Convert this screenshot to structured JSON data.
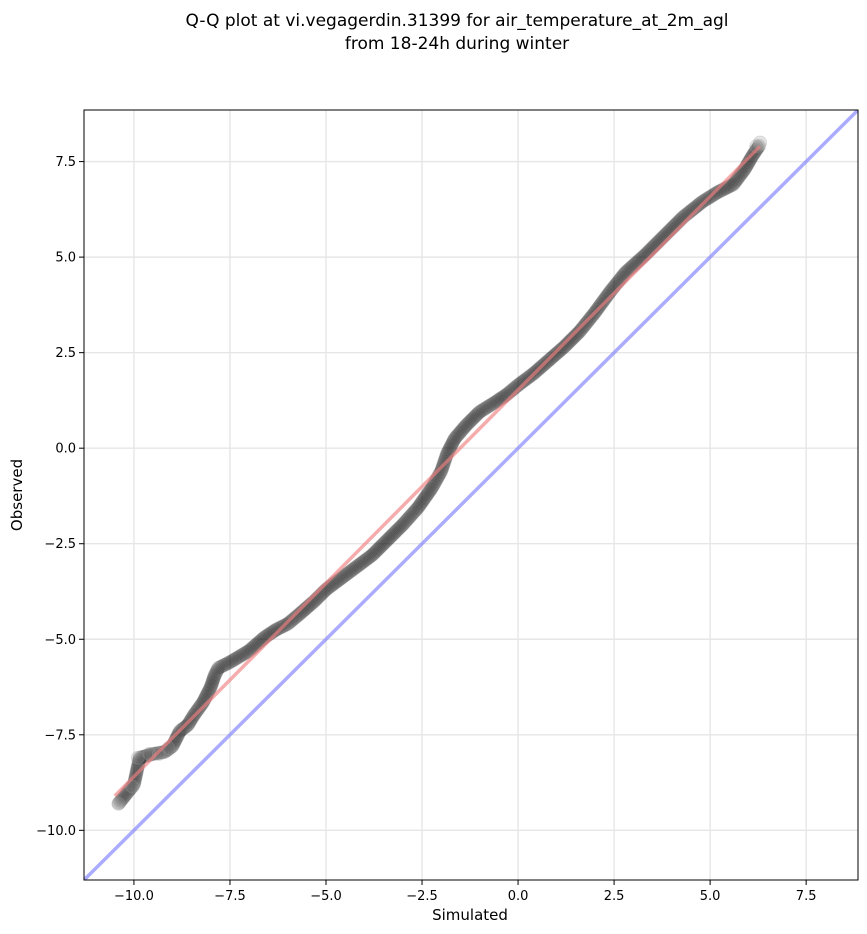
{
  "chart_data": {
    "type": "scatter",
    "title": "Q-Q plot at vi.vegagerdin.31399 for air_temperature_at_2m_agl",
    "subtitle": "from 18-24h during winter",
    "xlabel": "Simulated",
    "ylabel": "Observed",
    "xlim": [
      -11.3,
      8.85
    ],
    "ylim": [
      -11.3,
      8.85
    ],
    "xticks": [
      -10.0,
      -7.5,
      -5.0,
      -2.5,
      0.0,
      2.5,
      5.0,
      7.5
    ],
    "xtick_labels": [
      "−10.0",
      "−7.5",
      "−5.0",
      "−2.5",
      "0.0",
      "2.5",
      "5.0",
      "7.5"
    ],
    "yticks": [
      -10.0,
      -7.5,
      -5.0,
      -2.5,
      0.0,
      2.5,
      5.0,
      7.5
    ],
    "ytick_labels": [
      "−10.0",
      "−7.5",
      "−5.0",
      "−2.5",
      "0.0",
      "2.5",
      "5.0",
      "7.5"
    ],
    "grid": true,
    "colors": {
      "points": "#000000",
      "fit_line": "#f08080",
      "identity_line": "#8080ff"
    },
    "identity_line": {
      "from": [
        -11.3,
        -11.3
      ],
      "to": [
        8.85,
        8.85
      ]
    },
    "fit_line": {
      "from": [
        -10.5,
        -9.1
      ],
      "to": [
        6.3,
        7.9
      ]
    },
    "quantile_curve": [
      [
        -10.4,
        -9.3
      ],
      [
        -10.0,
        -8.8
      ],
      [
        -9.85,
        -8.1
      ],
      [
        -9.5,
        -8.0
      ],
      [
        -9.2,
        -7.95
      ],
      [
        -9.0,
        -7.8
      ],
      [
        -8.8,
        -7.4
      ],
      [
        -8.6,
        -7.25
      ],
      [
        -8.45,
        -7.0
      ],
      [
        -8.2,
        -6.65
      ],
      [
        -8.0,
        -6.25
      ],
      [
        -7.9,
        -5.95
      ],
      [
        -7.8,
        -5.75
      ],
      [
        -7.5,
        -5.6
      ],
      [
        -7.0,
        -5.3
      ],
      [
        -6.6,
        -4.95
      ],
      [
        -6.3,
        -4.75
      ],
      [
        -6.0,
        -4.6
      ],
      [
        -5.7,
        -4.35
      ],
      [
        -5.3,
        -4.0
      ],
      [
        -5.0,
        -3.7
      ],
      [
        -4.6,
        -3.4
      ],
      [
        -4.2,
        -3.1
      ],
      [
        -3.8,
        -2.8
      ],
      [
        -3.4,
        -2.4
      ],
      [
        -3.0,
        -2.0
      ],
      [
        -2.6,
        -1.55
      ],
      [
        -2.25,
        -1.05
      ],
      [
        -2.0,
        -0.6
      ],
      [
        -1.85,
        -0.15
      ],
      [
        -1.65,
        0.25
      ],
      [
        -1.35,
        0.6
      ],
      [
        -1.0,
        0.95
      ],
      [
        -0.6,
        1.2
      ],
      [
        -0.3,
        1.4
      ],
      [
        0.0,
        1.65
      ],
      [
        0.4,
        1.95
      ],
      [
        0.8,
        2.3
      ],
      [
        1.2,
        2.65
      ],
      [
        1.6,
        3.05
      ],
      [
        2.0,
        3.55
      ],
      [
        2.4,
        4.1
      ],
      [
        2.8,
        4.6
      ],
      [
        3.3,
        5.05
      ],
      [
        3.8,
        5.55
      ],
      [
        4.3,
        6.05
      ],
      [
        4.8,
        6.45
      ],
      [
        5.2,
        6.7
      ],
      [
        5.6,
        6.9
      ],
      [
        5.9,
        7.3
      ],
      [
        6.1,
        7.65
      ],
      [
        6.3,
        7.95
      ]
    ],
    "outliers": [
      [
        -10.4,
        -9.3
      ],
      [
        -10.05,
        -8.85
      ],
      [
        -9.9,
        -8.1
      ],
      [
        -9.6,
        -8.0
      ],
      [
        -9.35,
        -8.0
      ],
      [
        -9.1,
        -7.85
      ],
      [
        6.2,
        7.9
      ],
      [
        6.3,
        8.0
      ]
    ]
  }
}
